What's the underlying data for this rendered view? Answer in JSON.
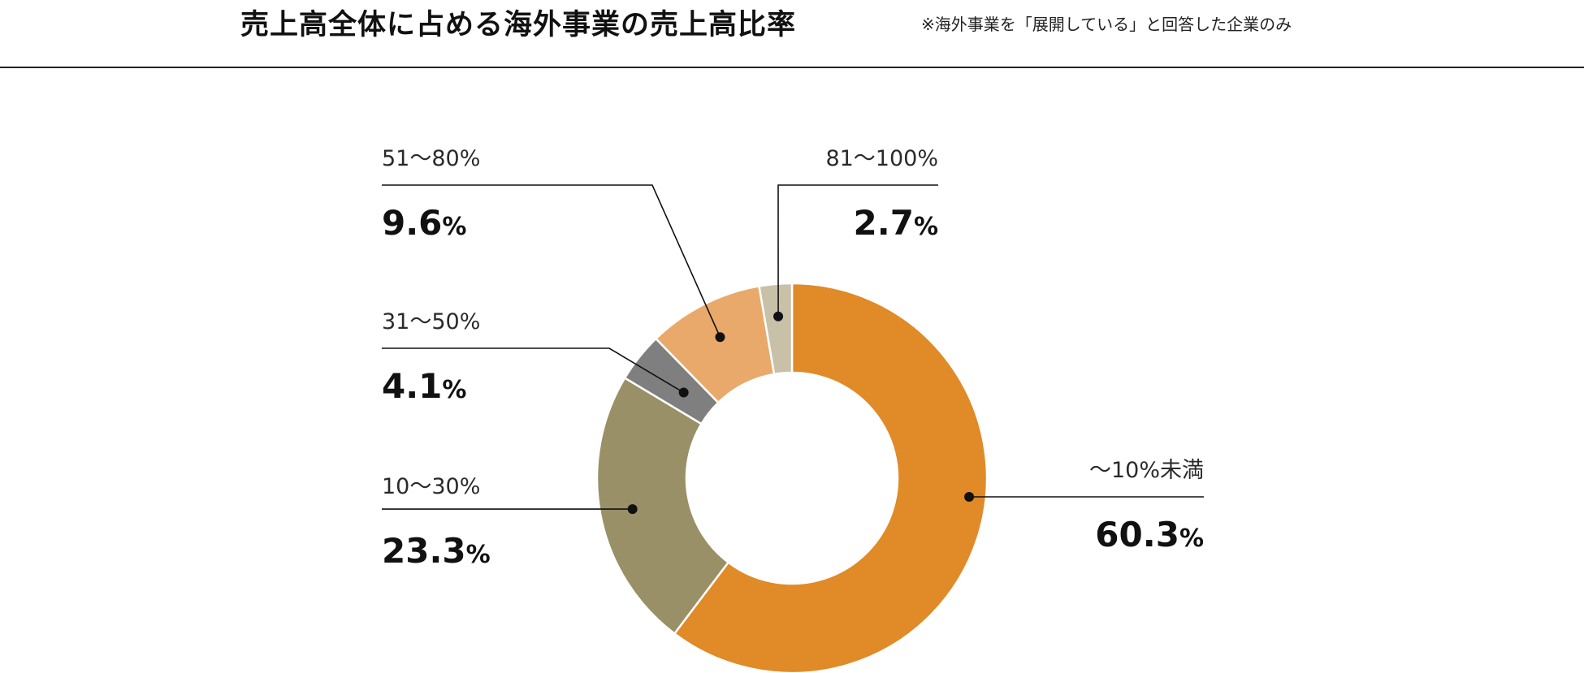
{
  "header": {
    "title": "売上高全体に占める海外事業の売上高比率",
    "note": "※海外事業を「展開している」と回答した企業のみ"
  },
  "chart_data": {
    "type": "pie",
    "title": "売上高全体に占める海外事業の売上高比率",
    "donut": true,
    "categories": [
      "〜10%未満",
      "10〜30%",
      "31〜50%",
      "51〜80%",
      "81〜100%"
    ],
    "values": [
      60.3,
      23.3,
      4.1,
      9.6,
      2.7
    ],
    "value_labels": [
      "60.3",
      "23.3",
      "4.1",
      "9.6",
      "2.7"
    ],
    "unit": "%",
    "colors": [
      "#e08a28",
      "#999067",
      "#7f7f7f",
      "#e9a96a",
      "#c9c0a8"
    ],
    "legend": "none"
  }
}
